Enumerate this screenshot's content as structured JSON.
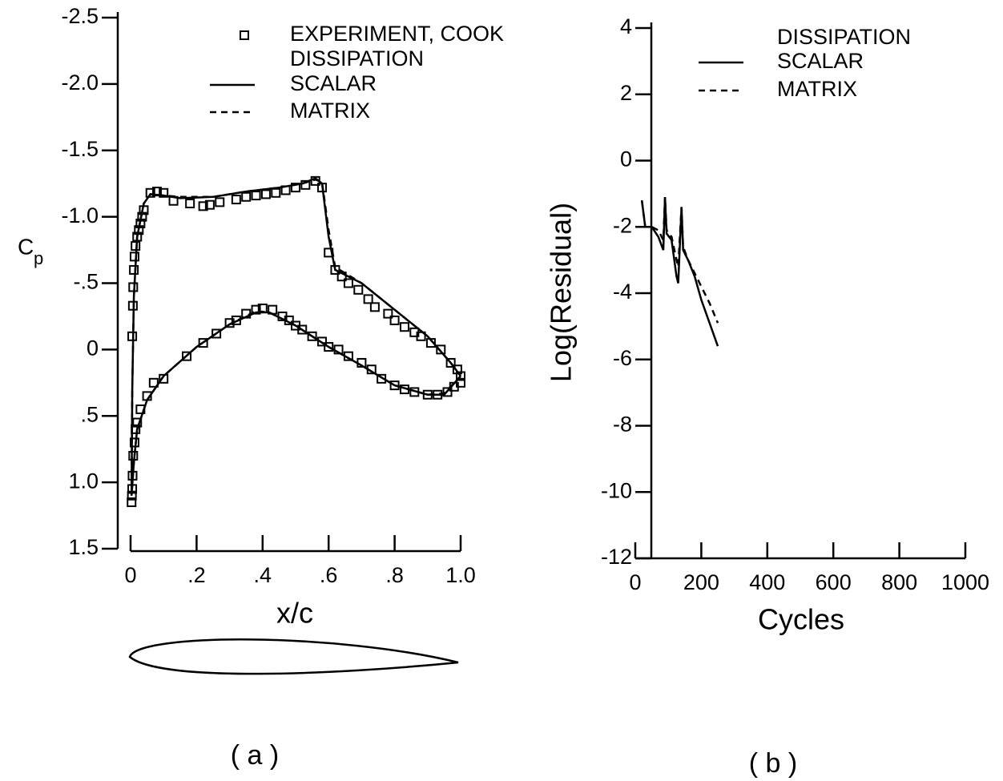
{
  "chart_data": [
    {
      "type": "line",
      "panel_label": "( a )",
      "x_label": "x/c",
      "y_label": "C",
      "y_label_sub": "p",
      "xlim": [
        0,
        1.0
      ],
      "xticks": [
        0,
        {
          "value": 0.2,
          "label": ".2"
        },
        {
          "value": 0.4,
          "label": ".4"
        },
        {
          "value": 0.6,
          "label": ".6"
        },
        {
          "value": 0.8,
          "label": ".8"
        },
        {
          "value": 1.0,
          "label": "1.0"
        }
      ],
      "ylim": [
        -2.5,
        1.5
      ],
      "y_inverted": true,
      "yticks": [
        -2.5,
        {
          "value": -2.0,
          "label": "-2.0"
        },
        -1.5,
        {
          "value": -1.0,
          "label": "-1.0"
        },
        {
          "value": -0.5,
          "label": "-.5"
        },
        0,
        {
          "value": 0.5,
          "label": ".5"
        },
        {
          "value": 1.0,
          "label": "1.0"
        },
        1.5
      ],
      "legend_title": "DISSIPATION",
      "series": [
        {
          "name": "EXPERIMENT, COOK",
          "style": "markers",
          "color": "#000000",
          "x": [
            0.005,
            0.007,
            0.008,
            0.01,
            0.012,
            0.015,
            0.02,
            0.025,
            0.03,
            0.035,
            0.04,
            0.06,
            0.08,
            0.1,
            0.13,
            0.18,
            0.22,
            0.24,
            0.27,
            0.32,
            0.35,
            0.38,
            0.41,
            0.44,
            0.47,
            0.5,
            0.53,
            0.56,
            0.58,
            0.6,
            0.62,
            0.64,
            0.66,
            0.69,
            0.72,
            0.74,
            0.78,
            0.8,
            0.83,
            0.86,
            0.88,
            0.91,
            0.94,
            0.97,
            0.99,
            1.0,
            0.003,
            0.004,
            0.005,
            0.006,
            0.008,
            0.012,
            0.015,
            0.02,
            0.03,
            0.05,
            0.07,
            0.1,
            0.17,
            0.22,
            0.26,
            0.3,
            0.32,
            0.35,
            0.38,
            0.4,
            0.43,
            0.46,
            0.48,
            0.5,
            0.52,
            0.55,
            0.58,
            0.6,
            0.63,
            0.66,
            0.7,
            0.73,
            0.76,
            0.8,
            0.83,
            0.86,
            0.9,
            0.93,
            0.96,
            0.98,
            1.0
          ],
          "values": [
            -0.1,
            -0.33,
            -0.47,
            -0.6,
            -0.7,
            -0.78,
            -0.85,
            -0.9,
            -0.95,
            -1.0,
            -1.05,
            -1.18,
            -1.19,
            -1.18,
            -1.12,
            -1.1,
            -1.08,
            -1.09,
            -1.11,
            -1.13,
            -1.15,
            -1.16,
            -1.17,
            -1.18,
            -1.2,
            -1.22,
            -1.24,
            -1.27,
            -1.22,
            -0.73,
            -0.6,
            -0.55,
            -0.5,
            -0.45,
            -0.38,
            -0.32,
            -0.27,
            -0.22,
            -0.17,
            -0.13,
            -0.1,
            -0.05,
            0.0,
            0.1,
            0.15,
            0.2,
            1.15,
            1.1,
            1.05,
            0.95,
            0.8,
            0.7,
            0.6,
            0.55,
            0.45,
            0.35,
            0.25,
            0.22,
            0.05,
            -0.05,
            -0.12,
            -0.2,
            -0.22,
            -0.27,
            -0.3,
            -0.31,
            -0.3,
            -0.25,
            -0.22,
            -0.18,
            -0.15,
            -0.1,
            -0.06,
            -0.02,
            0.0,
            0.05,
            0.1,
            0.15,
            0.22,
            0.27,
            0.3,
            0.32,
            0.34,
            0.34,
            0.32,
            0.28,
            0.25
          ]
        },
        {
          "name": "SCALAR",
          "style": "solid",
          "color": "#000000",
          "x": [
            1.0,
            0.95,
            0.9,
            0.8,
            0.7,
            0.6,
            0.5,
            0.42,
            0.38,
            0.3,
            0.2,
            0.1,
            0.05,
            0.02,
            0.01,
            0.003,
            0.005,
            0.01,
            0.02,
            0.04,
            0.06,
            0.1,
            0.15,
            0.25,
            0.35,
            0.45,
            0.52,
            0.56,
            0.58,
            0.6,
            0.62,
            0.7,
            0.8,
            0.9,
            0.97,
            1.0
          ],
          "values": [
            0.2,
            0.34,
            0.34,
            0.27,
            0.12,
            -0.02,
            -0.18,
            -0.28,
            -0.28,
            -0.19,
            -0.02,
            0.2,
            0.38,
            0.6,
            0.85,
            1.1,
            0.3,
            -0.4,
            -0.85,
            -1.1,
            -1.17,
            -1.16,
            -1.14,
            -1.15,
            -1.19,
            -1.22,
            -1.25,
            -1.29,
            -1.25,
            -0.85,
            -0.6,
            -0.5,
            -0.3,
            -0.1,
            0.1,
            0.2
          ]
        },
        {
          "name": "MATRIX",
          "style": "dashed",
          "color": "#000000",
          "x": [
            1.0,
            0.95,
            0.9,
            0.8,
            0.7,
            0.6,
            0.5,
            0.42,
            0.38,
            0.3,
            0.2,
            0.1,
            0.05,
            0.02,
            0.01,
            0.003,
            0.005,
            0.01,
            0.02,
            0.04,
            0.06,
            0.1,
            0.15,
            0.25,
            0.35,
            0.45,
            0.52,
            0.56,
            0.58,
            0.6,
            0.62,
            0.7,
            0.8,
            0.9,
            0.97,
            1.0
          ],
          "values": [
            0.2,
            0.33,
            0.34,
            0.27,
            0.12,
            -0.02,
            -0.18,
            -0.28,
            -0.29,
            -0.19,
            -0.02,
            0.2,
            0.38,
            0.6,
            0.85,
            1.1,
            0.3,
            -0.4,
            -0.85,
            -1.1,
            -1.17,
            -1.16,
            -1.15,
            -1.15,
            -1.19,
            -1.22,
            -1.25,
            -1.28,
            -1.26,
            -0.9,
            -0.62,
            -0.5,
            -0.3,
            -0.1,
            0.1,
            0.2
          ]
        }
      ]
    },
    {
      "type": "line",
      "panel_label": "( b )",
      "x_label": "Cycles",
      "y_label": "Log(Residual)",
      "xlim": [
        0,
        1000
      ],
      "xticks": [
        0,
        200,
        400,
        600,
        800,
        1000
      ],
      "ylim": [
        -12,
        4
      ],
      "yticks": [
        -12,
        -10,
        -8,
        -6,
        -4,
        -2,
        0,
        2,
        4
      ],
      "legend_title": "DISSIPATION",
      "series": [
        {
          "name": "SCALAR",
          "style": "solid",
          "color": "#000000",
          "x": [
            20,
            30,
            50,
            70,
            85,
            90,
            95,
            110,
            125,
            130,
            140,
            145,
            160,
            180,
            200,
            225,
            250
          ],
          "values": [
            -1.2,
            -2.0,
            -2.0,
            -2.3,
            -2.7,
            -1.1,
            -2.2,
            -2.4,
            -3.5,
            -3.7,
            -1.4,
            -2.7,
            -3.0,
            -3.5,
            -4.2,
            -4.9,
            -5.6
          ]
        },
        {
          "name": "MATRIX",
          "style": "dashed",
          "color": "#000000",
          "x": [
            20,
            30,
            50,
            70,
            85,
            90,
            95,
            110,
            125,
            130,
            140,
            145,
            160,
            180,
            200,
            225,
            250
          ],
          "values": [
            -1.2,
            -2.0,
            -2.0,
            -2.1,
            -2.4,
            -1.1,
            -2.1,
            -2.3,
            -3.0,
            -3.2,
            -1.4,
            -2.6,
            -3.0,
            -3.4,
            -3.8,
            -4.3,
            -4.9
          ]
        }
      ]
    }
  ]
}
